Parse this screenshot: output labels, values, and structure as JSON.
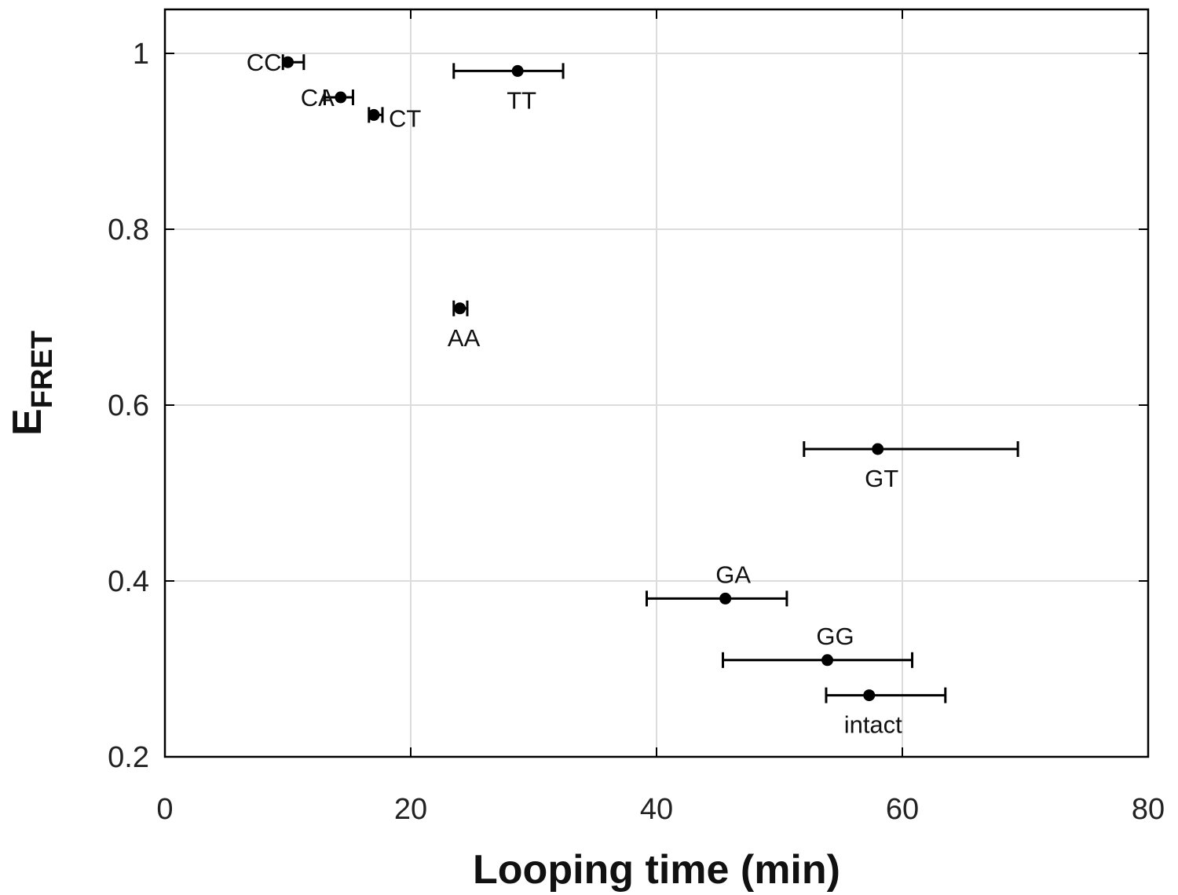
{
  "chart_data": {
    "type": "scatter",
    "title": "",
    "xlabel": "Looping time (min)",
    "ylabel": {
      "main": "E",
      "subscript": "FRET"
    },
    "xlim": [
      0,
      80
    ],
    "ylim": [
      0.2,
      1.05
    ],
    "xticks": [
      "0",
      "20",
      "40",
      "60",
      "80"
    ],
    "yticks": [
      "0.2",
      "0.4",
      "0.6",
      "0.8",
      "1"
    ],
    "grid": true,
    "error_bars": "horizontal",
    "points": [
      {
        "label": "CC",
        "x": 10.0,
        "y": 0.99,
        "xerr_low": 9.6,
        "xerr_high": 11.3,
        "label_pos": "left"
      },
      {
        "label": "CA",
        "x": 14.3,
        "y": 0.95,
        "xerr_low": 13.0,
        "xerr_high": 15.3,
        "label_pos": "left"
      },
      {
        "label": "CT",
        "x": 17.0,
        "y": 0.93,
        "xerr_low": 16.6,
        "xerr_high": 17.7,
        "label_pos": "right"
      },
      {
        "label": "TT",
        "x": 28.7,
        "y": 0.98,
        "xerr_low": 23.5,
        "xerr_high": 32.4,
        "label_pos": "below"
      },
      {
        "label": "AA",
        "x": 24.0,
        "y": 0.71,
        "xerr_low": 23.5,
        "xerr_high": 24.6,
        "label_pos": "below"
      },
      {
        "label": "GT",
        "x": 58.0,
        "y": 0.55,
        "xerr_low": 52.0,
        "xerr_high": 69.4,
        "label_pos": "below"
      },
      {
        "label": "GA",
        "x": 45.6,
        "y": 0.38,
        "xerr_low": 39.2,
        "xerr_high": 50.6,
        "label_pos": "above"
      },
      {
        "label": "GG",
        "x": 53.9,
        "y": 0.31,
        "xerr_low": 45.4,
        "xerr_high": 60.8,
        "label_pos": "above"
      },
      {
        "label": "intact",
        "x": 57.3,
        "y": 0.27,
        "xerr_low": 53.8,
        "xerr_high": 63.5,
        "label_pos": "below"
      }
    ]
  }
}
